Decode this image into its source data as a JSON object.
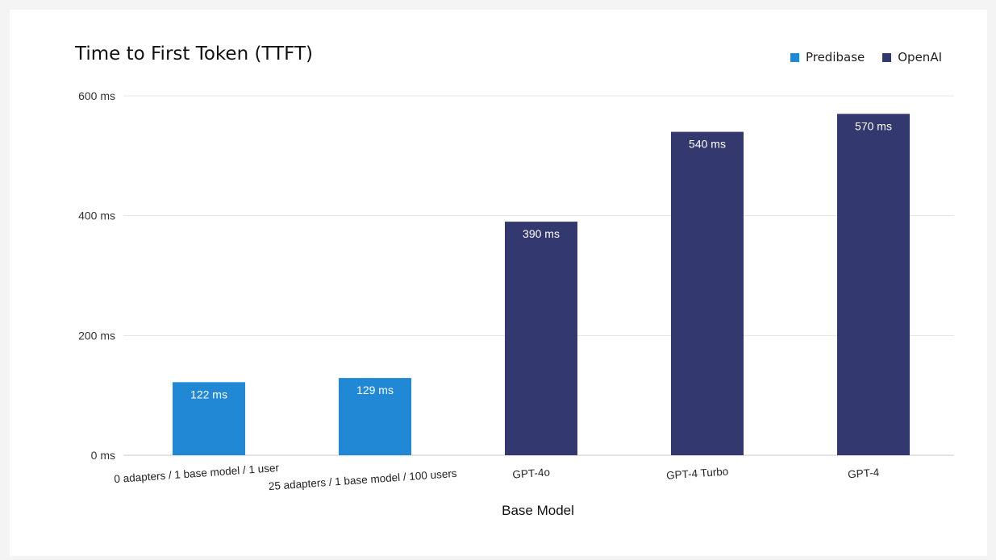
{
  "chart_data": {
    "type": "bar",
    "title": "Time to First Token (TTFT)",
    "xlabel": "Base Model",
    "ylabel": "",
    "ylim": [
      0,
      600
    ],
    "yticks": [
      0,
      200,
      400,
      600
    ],
    "ytick_labels": [
      "0 ms",
      "200 ms",
      "400 ms",
      "600 ms"
    ],
    "categories": [
      "0 adapters / 1 base model / 1 user",
      "25 adapters / 1 base model / 100 users",
      "GPT-4o",
      "GPT-4 Turbo",
      "GPT-4"
    ],
    "values": [
      122,
      129,
      390,
      540,
      570
    ],
    "value_labels": [
      "122 ms",
      "129 ms",
      "390 ms",
      "540 ms",
      "570 ms"
    ],
    "bar_group": [
      "Predibase",
      "Predibase",
      "OpenAI",
      "OpenAI",
      "OpenAI"
    ],
    "legend": [
      {
        "name": "Predibase",
        "color": "#2188d6"
      },
      {
        "name": "OpenAI",
        "color": "#33386e"
      }
    ],
    "legend_position": "top-right",
    "grid": true
  }
}
